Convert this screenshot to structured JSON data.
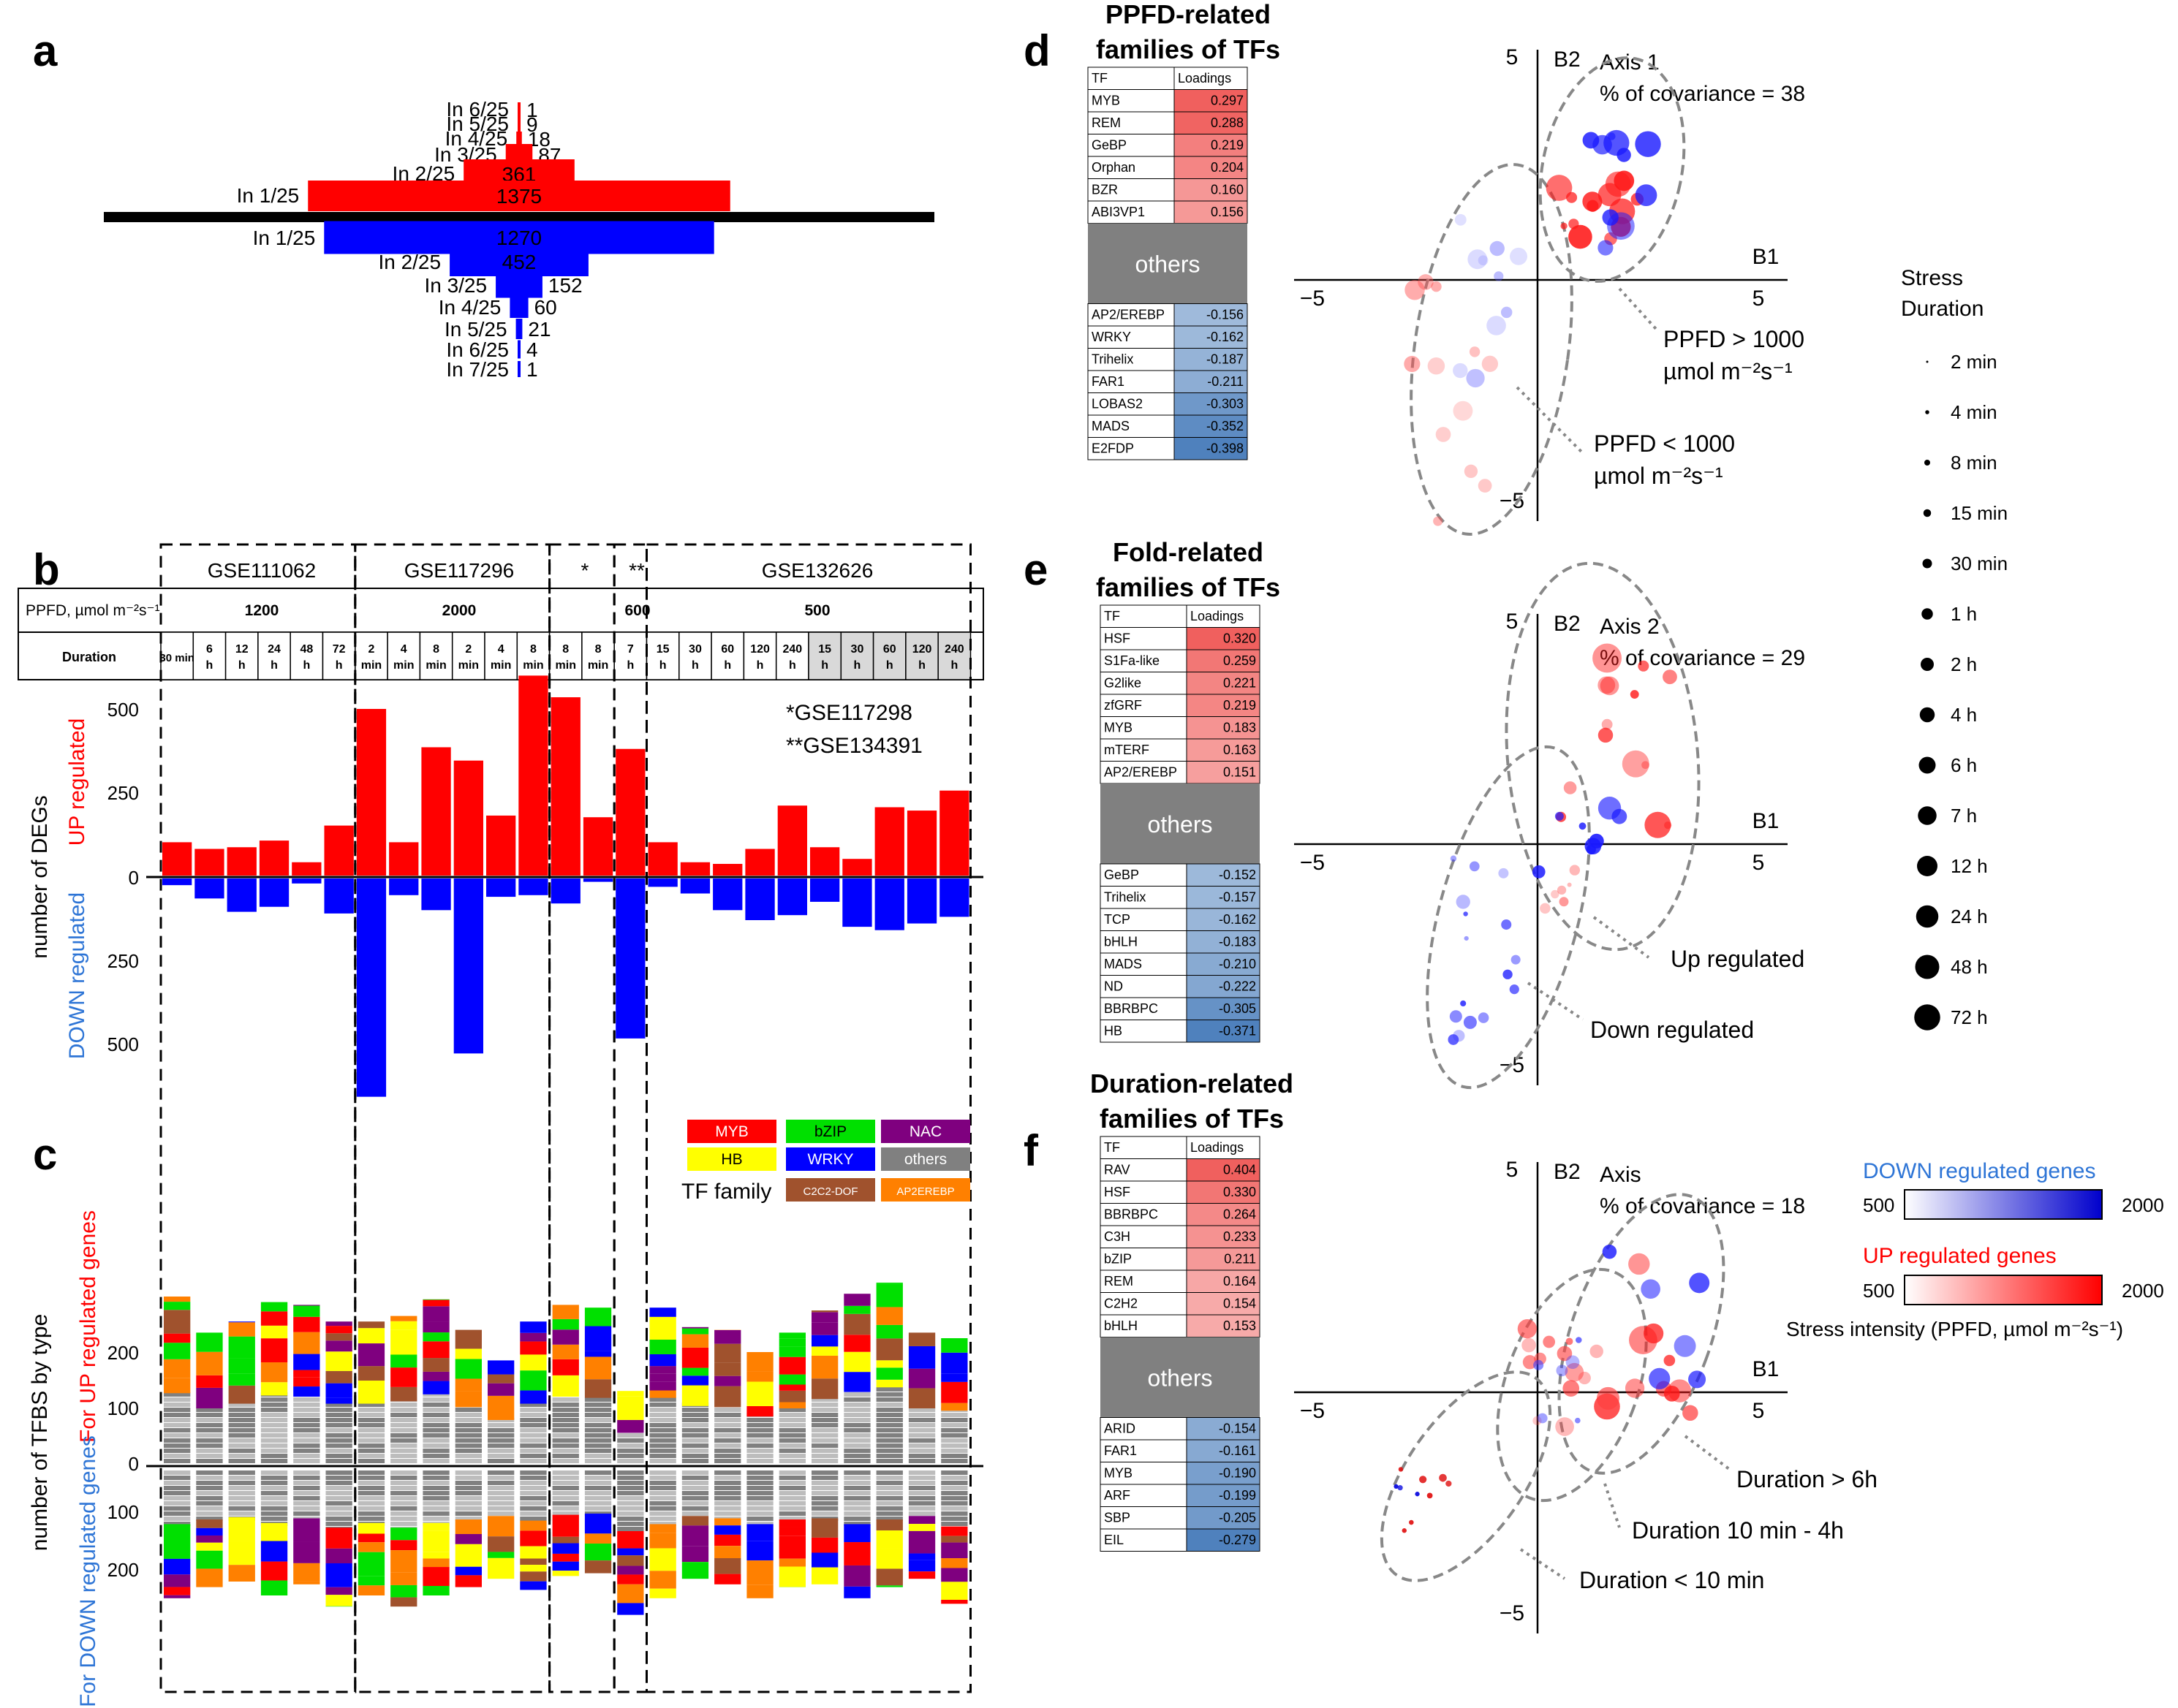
{
  "panels": {
    "a": "a",
    "b": "b",
    "c": "c",
    "d": "d",
    "e": "e",
    "f": "f"
  },
  "panel_a": {
    "up": [
      {
        "label": "In 6/25",
        "value": 1
      },
      {
        "label": "In 5/25",
        "value": 9
      },
      {
        "label": "In 4/25",
        "value": 18
      },
      {
        "label": "In 3/25",
        "value": 87
      },
      {
        "label": "In 2/25",
        "value": 361
      },
      {
        "label": "In 1/25",
        "value": 1375
      }
    ],
    "down": [
      {
        "label": "In 1/25",
        "value": 1270
      },
      {
        "label": "In 2/25",
        "value": 452
      },
      {
        "label": "In 3/25",
        "value": 152
      },
      {
        "label": "In 4/25",
        "value": 60
      },
      {
        "label": "In 5/25",
        "value": 21
      },
      {
        "label": "In 6/25",
        "value": 4
      },
      {
        "label": "In 7/25",
        "value": 1
      }
    ],
    "colors": {
      "up": "#ff0000",
      "down": "#0000ff"
    }
  },
  "table_b": {
    "datasets": [
      "GSE111062",
      "GSE117296",
      "*",
      "**",
      "GSE132626"
    ],
    "ppfd_label": "PPFD, µmol m⁻²s⁻¹",
    "ppfd_values": [
      "1200",
      "2000",
      "600",
      "500"
    ],
    "duration_label": "Duration",
    "durations": [
      "30 min",
      "6 h",
      "12 h",
      "24 h",
      "48 h",
      "72 h",
      "2 min",
      "4 min",
      "8 min",
      "2 min",
      "4 min",
      "8 min",
      "8 min",
      "8 min",
      "7 h",
      "15 h",
      "30 h",
      "60 h",
      "120 h",
      "240 h",
      "15 h",
      "30 h",
      "60 h",
      "120 h",
      "240 h"
    ],
    "footnote1": "*GSE117298",
    "footnote2": "**GSE134391"
  },
  "chart_data": [
    {
      "type": "bar",
      "panel": "b",
      "ylabel": "number of DEGs",
      "up_label": "UP regulated",
      "down_label": "DOWN regulated",
      "tick_labels": [
        "500",
        "250",
        "0",
        "250",
        "500"
      ],
      "series": [
        {
          "name": "UP regulated",
          "values": [
            100,
            80,
            85,
            105,
            40,
            150,
            500,
            100,
            385,
            345,
            180,
            600,
            535,
            175,
            380,
            100,
            40,
            35,
            80,
            210,
            85,
            50,
            205,
            195,
            255
          ]
        },
        {
          "name": "DOWN regulated",
          "values": [
            20,
            60,
            100,
            85,
            15,
            105,
            655,
            50,
            95,
            525,
            55,
            50,
            75,
            10,
            480,
            25,
            45,
            95,
            125,
            110,
            70,
            145,
            155,
            135,
            115
          ]
        }
      ],
      "ylim": [
        -700,
        600
      ]
    },
    {
      "type": "bar",
      "panel": "c",
      "ylabel": "number of TFBS by type",
      "up_label": "For UP regulated genes",
      "down_label": "For DOWN regulated genes",
      "tick_labels": [
        "200",
        "100",
        "0",
        "100",
        "200"
      ],
      "legend_title": "TF family",
      "legend": [
        "MYB",
        "bZIP",
        "NAC",
        "HB",
        "WRKY",
        "others",
        "C2C2-DOF",
        "AP2EREBP"
      ],
      "series": [
        {
          "name": "TFBS up",
          "values": [
            300,
            235,
            255,
            290,
            285,
            255,
            255,
            265,
            295,
            240,
            185,
            255,
            285,
            280,
            130,
            280,
            245,
            240,
            200,
            235,
            275,
            305,
            325,
            235,
            225
          ]
        },
        {
          "name": "TFBS down",
          "values": [
            230,
            210,
            200,
            225,
            205,
            245,
            225,
            245,
            225,
            210,
            195,
            215,
            190,
            185,
            260,
            230,
            195,
            205,
            230,
            210,
            205,
            230,
            210,
            195,
            240
          ]
        }
      ]
    },
    {
      "type": "scatter",
      "panel": "d",
      "title": "PPFD-related families of TFs",
      "axis_label": "Axis 1",
      "covariance": "% of covariance = 38",
      "xlabel": "B1",
      "ylabel": "B2",
      "ticks": {
        "xmin": "−5",
        "xmax": "5",
        "ymax": "5",
        "ymin": "−5"
      },
      "ann1": "PPFD > 1000",
      "ann1b": "µmol m⁻²s⁻¹",
      "ann2": "PPFD < 1000",
      "ann2b": "µmol m⁻²s⁻¹",
      "table_headers": [
        "TF",
        "Loadings"
      ],
      "loadings_pos": [
        [
          "MYB",
          "0.297"
        ],
        [
          "REM",
          "0.288"
        ],
        [
          "GeBP",
          "0.219"
        ],
        [
          "Orphan",
          "0.204"
        ],
        [
          "BZR",
          "0.160"
        ],
        [
          "ABI3VP1",
          "0.156"
        ]
      ],
      "loadings_neg": [
        [
          "AP2/EREBP",
          "-0.156"
        ],
        [
          "WRKY",
          "-0.162"
        ],
        [
          "Trihelix",
          "-0.187"
        ],
        [
          "FAR1",
          "-0.211"
        ],
        [
          "LOBAS2",
          "-0.303"
        ],
        [
          "MADS",
          "-0.352"
        ],
        [
          "E2FDP",
          "-0.398"
        ]
      ],
      "others": "others"
    },
    {
      "type": "scatter",
      "panel": "e",
      "title": "Fold-related families of TFs",
      "axis_label": "Axis 2",
      "covariance": "% of covariance = 29",
      "xlabel": "B1",
      "ylabel": "B2",
      "ticks": {
        "xmin": "−5",
        "xmax": "5",
        "ymax": "5",
        "ymin": "−5"
      },
      "ann1": "Up regulated",
      "ann2": "Down regulated",
      "table_headers": [
        "TF",
        "Loadings"
      ],
      "loadings_pos": [
        [
          "HSF",
          "0.320"
        ],
        [
          "S1Fa-like",
          "0.259"
        ],
        [
          "G2like",
          "0.221"
        ],
        [
          "zfGRF",
          "0.219"
        ],
        [
          "MYB",
          "0.183"
        ],
        [
          "mTERF",
          "0.163"
        ],
        [
          "AP2/EREBP",
          "0.151"
        ]
      ],
      "loadings_neg": [
        [
          "GeBP",
          "-0.152"
        ],
        [
          "Trihelix",
          "-0.157"
        ],
        [
          "TCP",
          "-0.162"
        ],
        [
          "bHLH",
          "-0.183"
        ],
        [
          "MADS",
          "-0.210"
        ],
        [
          "ND",
          "-0.222"
        ],
        [
          "BBRBPC",
          "-0.305"
        ],
        [
          "HB",
          "-0.371"
        ]
      ],
      "others": "others"
    },
    {
      "type": "scatter",
      "panel": "f",
      "title": "Duration-related families of TFs",
      "axis_label": "Axis",
      "covariance": "% of covariance = 18",
      "xlabel": "B1",
      "ylabel": "B2",
      "ticks": {
        "xmin": "−5",
        "xmax": "5",
        "ymax": "5",
        "ymin": "−5"
      },
      "ann1": "Duration > 6h",
      "ann2": "Duration 10 min - 4h",
      "ann3": "Duration < 10 min",
      "table_headers": [
        "TF",
        "Loadings"
      ],
      "loadings_pos": [
        [
          "RAV",
          "0.404"
        ],
        [
          "HSF",
          "0.330"
        ],
        [
          "BBRBPC",
          "0.264"
        ],
        [
          "C3H",
          "0.233"
        ],
        [
          "bZIP",
          "0.211"
        ],
        [
          "REM",
          "0.164"
        ],
        [
          "C2H2",
          "0.154"
        ],
        [
          "bHLH",
          "0.153"
        ]
      ],
      "loadings_neg": [
        [
          "ARID",
          "-0.154"
        ],
        [
          "FAR1",
          "-0.161"
        ],
        [
          "MYB",
          "-0.190"
        ],
        [
          "ARF",
          "-0.199"
        ],
        [
          "SBP",
          "-0.205"
        ],
        [
          "EIL",
          "-0.279"
        ]
      ],
      "others": "others"
    }
  ],
  "legend_stress": {
    "title1": "Stress",
    "title2": "Duration",
    "items": [
      "2 min",
      "4 min",
      "8  min",
      "15  min",
      "30  min",
      "1 h",
      "2 h",
      "4 h",
      "6 h",
      "7 h",
      "12 h",
      "24 h",
      "48 h",
      "72 h"
    ]
  },
  "legend_colorbar": {
    "down_title": "DOWN regulated genes",
    "up_title": "UP regulated genes",
    "min": "500",
    "max": "2000",
    "intensity_label": "Stress intensity (PPFD, µmol m⁻²s⁻¹)",
    "down_color": "#0000ff",
    "up_color": "#ff0000"
  }
}
